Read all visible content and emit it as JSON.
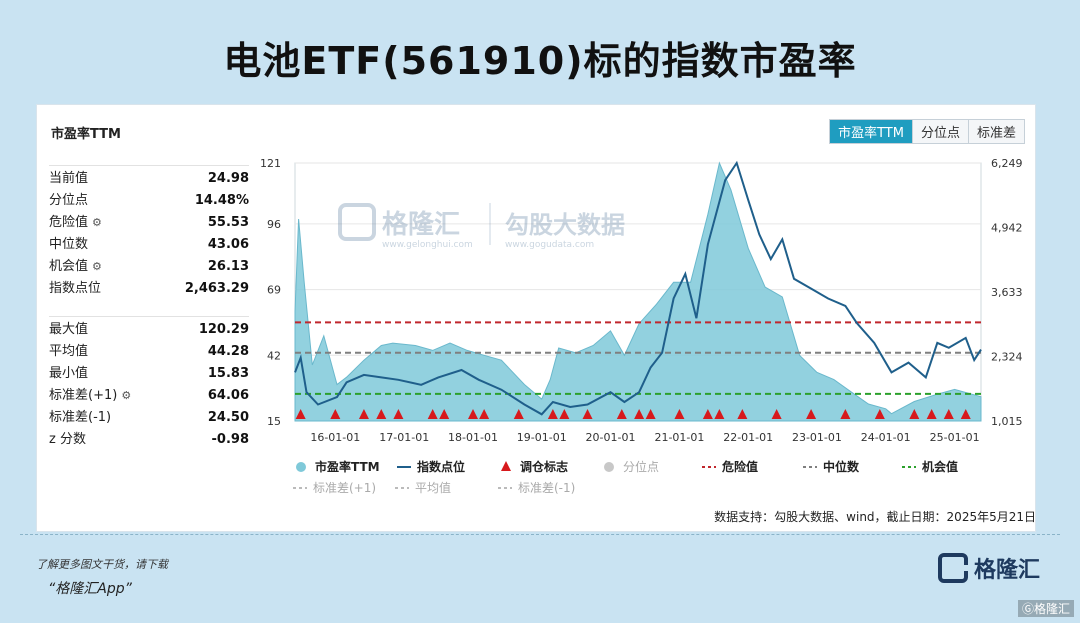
{
  "title": "电池ETF(561910)标的指数市盈率",
  "stats_title": "市盈率TTM",
  "toggles": [
    "市盈率TTM",
    "分位点",
    "标准差"
  ],
  "stats_group1": [
    {
      "label": "当前值",
      "value": "24.98",
      "gear": false
    },
    {
      "label": "分位点",
      "value": "14.48%",
      "gear": false
    },
    {
      "label": "危险值",
      "value": "55.53",
      "gear": true
    },
    {
      "label": "中位数",
      "value": "43.06",
      "gear": false
    },
    {
      "label": "机会值",
      "value": "26.13",
      "gear": true
    },
    {
      "label": "指数点位",
      "value": "2,463.29",
      "gear": false
    }
  ],
  "stats_group2": [
    {
      "label": "最大值",
      "value": "120.29",
      "gear": false
    },
    {
      "label": "平均值",
      "value": "44.28",
      "gear": false
    },
    {
      "label": "最小值",
      "value": "15.83",
      "gear": false
    },
    {
      "label": "标准差(+1)",
      "value": "64.06",
      "gear": true
    },
    {
      "label": "标准差(-1)",
      "value": "24.50",
      "gear": false
    },
    {
      "label": "z 分数",
      "value": "-0.98",
      "gear": false
    }
  ],
  "watermark": {
    "brand": "格隆汇",
    "brand_url": "www.gelonghui.com",
    "brand2": "勾股大数据",
    "brand2_url": "www.gogudata.com"
  },
  "source": "数据支持：勾股大数据、wind，截止日期：2025年5月21日",
  "footer": {
    "line1": "了解更多图文干货，请下载",
    "line2": "“格隆汇App”",
    "brand": "格隆汇",
    "brand_small": "Ⓖ格隆汇"
  },
  "colors": {
    "pe_fill": "#7fc9d9",
    "index_line": "#1f5f8b",
    "danger": "#c0272d",
    "median": "#7f7f7f",
    "opportunity": "#2ca02c",
    "marker": "#d7191c"
  },
  "chart_data": {
    "type": "area",
    "x_ticks": [
      "16-01-01",
      "17-01-01",
      "18-01-01",
      "19-01-01",
      "20-01-01",
      "21-01-01",
      "22-01-01",
      "23-01-01",
      "24-01-01",
      "25-01-01"
    ],
    "x_range": [
      "2015-06-01",
      "2025-05-21"
    ],
    "y_left_ticks": [
      "15",
      "42",
      "69",
      "96",
      "121"
    ],
    "y_left_range": [
      15,
      121
    ],
    "y_right_ticks": [
      "1,015",
      "2,324",
      "3,633",
      "4,942",
      "6,249"
    ],
    "y_right_range": [
      1015,
      6249
    ],
    "reference_lines": {
      "danger": 55.53,
      "median": 43.06,
      "opportunity": 26.13
    },
    "series": [
      {
        "name": "市盈率TTM",
        "axis": "left",
        "kind": "area",
        "points": [
          [
            "2015-06-01",
            60
          ],
          [
            "2015-06-20",
            98
          ],
          [
            "2015-07-20",
            72
          ],
          [
            "2015-09-01",
            38
          ],
          [
            "2015-11-01",
            50
          ],
          [
            "2016-01-10",
            30
          ],
          [
            "2016-03-01",
            33
          ],
          [
            "2016-06-01",
            40
          ],
          [
            "2016-09-01",
            46
          ],
          [
            "2016-11-01",
            47
          ],
          [
            "2017-03-01",
            46
          ],
          [
            "2017-06-01",
            44
          ],
          [
            "2017-09-01",
            47
          ],
          [
            "2017-12-01",
            44
          ],
          [
            "2018-03-01",
            42
          ],
          [
            "2018-06-01",
            40
          ],
          [
            "2018-10-01",
            30
          ],
          [
            "2019-01-01",
            24
          ],
          [
            "2019-02-15",
            32
          ],
          [
            "2019-04-01",
            45
          ],
          [
            "2019-07-01",
            43
          ],
          [
            "2019-10-01",
            46
          ],
          [
            "2020-01-01",
            52
          ],
          [
            "2020-03-15",
            42
          ],
          [
            "2020-06-01",
            55
          ],
          [
            "2020-09-01",
            63
          ],
          [
            "2020-12-01",
            72
          ],
          [
            "2021-03-01",
            72
          ],
          [
            "2021-06-01",
            100
          ],
          [
            "2021-08-01",
            121
          ],
          [
            "2021-10-01",
            110
          ],
          [
            "2022-01-01",
            86
          ],
          [
            "2022-04-01",
            70
          ],
          [
            "2022-07-01",
            66
          ],
          [
            "2022-10-01",
            42
          ],
          [
            "2023-01-01",
            35
          ],
          [
            "2023-04-01",
            32
          ],
          [
            "2023-07-01",
            27
          ],
          [
            "2023-10-01",
            22
          ],
          [
            "2024-01-01",
            20
          ],
          [
            "2024-02-01",
            18
          ],
          [
            "2024-06-01",
            23
          ],
          [
            "2024-10-01",
            26
          ],
          [
            "2025-01-01",
            28
          ],
          [
            "2025-05-21",
            25
          ]
        ]
      },
      {
        "name": "指数点位",
        "axis": "right",
        "kind": "line",
        "points": [
          [
            "2015-06-01",
            2000
          ],
          [
            "2015-07-01",
            2300
          ],
          [
            "2015-08-01",
            1600
          ],
          [
            "2015-10-01",
            1350
          ],
          [
            "2016-01-10",
            1500
          ],
          [
            "2016-03-01",
            1800
          ],
          [
            "2016-06-01",
            1950
          ],
          [
            "2016-09-01",
            1900
          ],
          [
            "2016-12-01",
            1850
          ],
          [
            "2017-04-01",
            1750
          ],
          [
            "2017-07-01",
            1900
          ],
          [
            "2017-11-01",
            2050
          ],
          [
            "2018-02-01",
            1850
          ],
          [
            "2018-06-01",
            1650
          ],
          [
            "2018-10-01",
            1350
          ],
          [
            "2019-01-01",
            1150
          ],
          [
            "2019-03-01",
            1400
          ],
          [
            "2019-06-01",
            1300
          ],
          [
            "2019-09-01",
            1350
          ],
          [
            "2020-01-01",
            1600
          ],
          [
            "2020-03-15",
            1400
          ],
          [
            "2020-06-01",
            1600
          ],
          [
            "2020-08-01",
            2100
          ],
          [
            "2020-10-01",
            2400
          ],
          [
            "2020-12-01",
            3500
          ],
          [
            "2021-02-01",
            4000
          ],
          [
            "2021-04-01",
            3100
          ],
          [
            "2021-06-01",
            4600
          ],
          [
            "2021-09-01",
            5900
          ],
          [
            "2021-11-01",
            6249
          ],
          [
            "2022-01-01",
            5500
          ],
          [
            "2022-03-01",
            4800
          ],
          [
            "2022-05-01",
            4300
          ],
          [
            "2022-07-01",
            4700
          ],
          [
            "2022-09-01",
            3900
          ],
          [
            "2022-12-01",
            3700
          ],
          [
            "2023-03-01",
            3500
          ],
          [
            "2023-06-01",
            3350
          ],
          [
            "2023-08-01",
            3000
          ],
          [
            "2023-11-01",
            2600
          ],
          [
            "2024-02-01",
            2000
          ],
          [
            "2024-05-01",
            2200
          ],
          [
            "2024-08-01",
            1900
          ],
          [
            "2024-10-01",
            2600
          ],
          [
            "2024-12-01",
            2500
          ],
          [
            "2025-03-01",
            2700
          ],
          [
            "2025-04-15",
            2250
          ],
          [
            "2025-05-21",
            2463
          ]
        ]
      }
    ],
    "rebalance_markers": [
      "2015-07-01",
      "2016-01-01",
      "2016-06-01",
      "2016-09-01",
      "2016-12-01",
      "2017-06-01",
      "2017-08-01",
      "2018-01-01",
      "2018-03-01",
      "2018-09-01",
      "2019-03-01",
      "2019-05-01",
      "2019-09-01",
      "2020-03-01",
      "2020-06-01",
      "2020-08-01",
      "2021-01-01",
      "2021-06-01",
      "2021-08-01",
      "2021-12-01",
      "2022-06-01",
      "2022-12-01",
      "2023-06-01",
      "2023-12-01",
      "2024-06-01",
      "2024-09-01",
      "2024-12-01",
      "2025-03-01"
    ],
    "legend": {
      "row1": [
        {
          "name": "市盈率TTM",
          "type": "dot",
          "color": "#7fc9d9"
        },
        {
          "name": "指数点位",
          "type": "line",
          "color": "#1f5f8b"
        },
        {
          "name": "调仓标志",
          "type": "triangle",
          "color": "#d7191c"
        },
        {
          "name": "分位点",
          "type": "dot-muted",
          "color": "#c8c8c8"
        },
        {
          "name": "危险值",
          "type": "dash",
          "color": "#c0272d"
        },
        {
          "name": "中位数",
          "type": "dash",
          "color": "#7f7f7f"
        },
        {
          "name": "机会值",
          "type": "dash",
          "color": "#2ca02c"
        }
      ],
      "row2": [
        {
          "name": "标准差(+1)",
          "type": "dash-muted",
          "color": "#bbbbbb"
        },
        {
          "name": "平均值",
          "type": "dash-muted",
          "color": "#bbbbbb"
        },
        {
          "name": "标准差(-1)",
          "type": "dash-muted",
          "color": "#bbbbbb"
        }
      ]
    }
  }
}
